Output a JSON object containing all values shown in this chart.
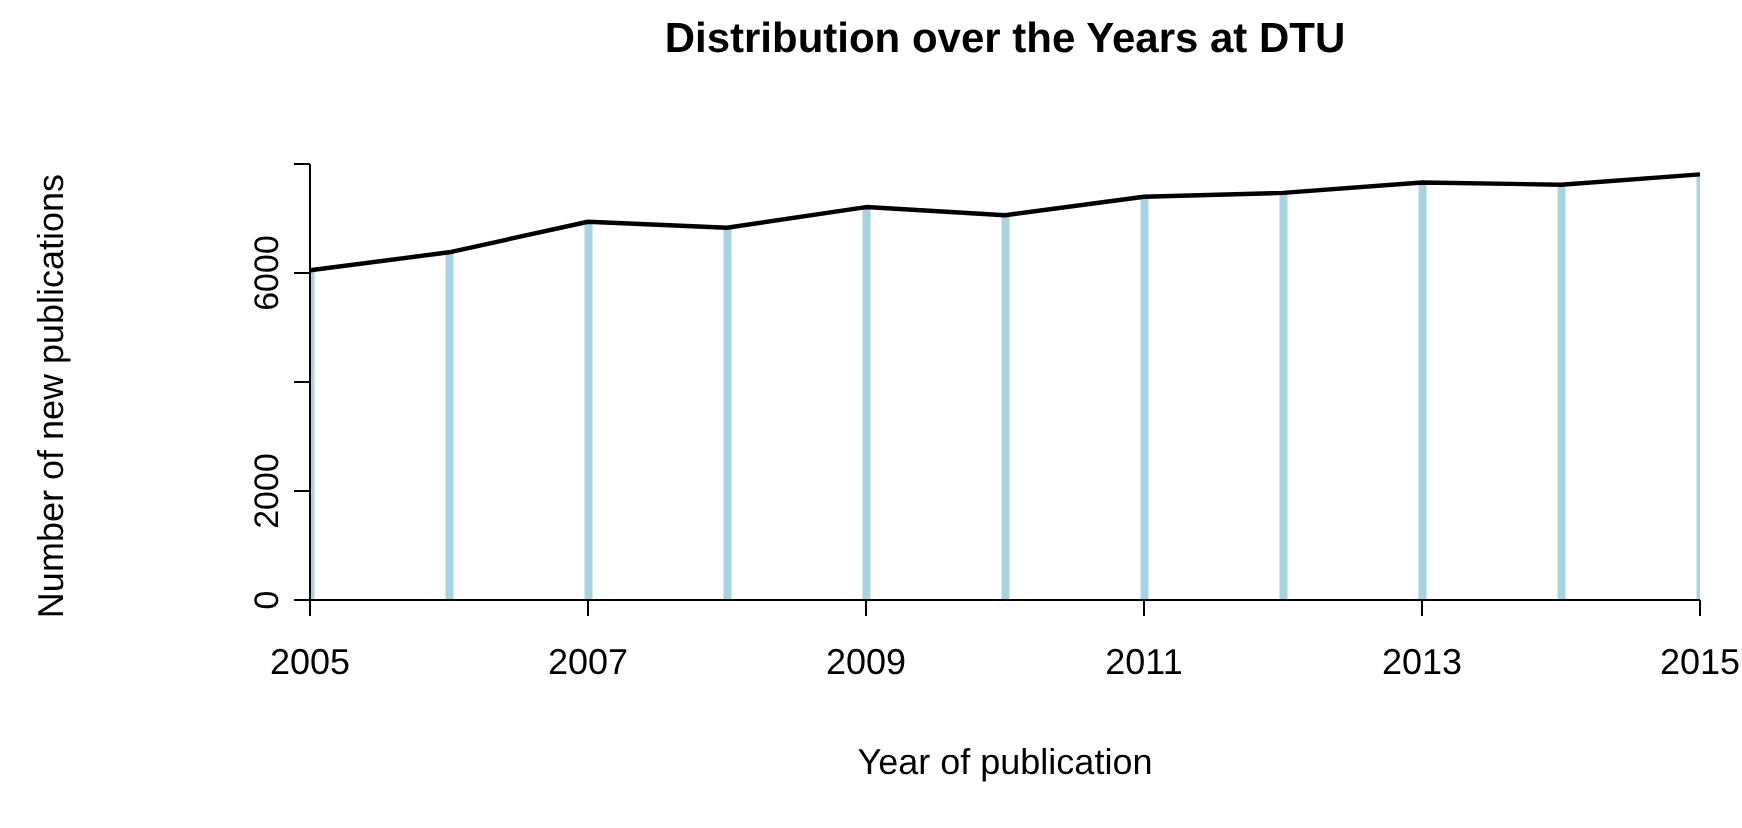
{
  "chart_data": {
    "type": "line",
    "title": "Distribution over the Years at DTU",
    "xlabel": "Year of publication",
    "ylabel": "Number of new publications",
    "x": [
      2005,
      2006,
      2007,
      2008,
      2009,
      2010,
      2011,
      2012,
      2013,
      2014,
      2015
    ],
    "series": [
      {
        "type": "bar",
        "color": "#a8d4e2",
        "values": [
          6050,
          6380,
          6940,
          6830,
          7210,
          7060,
          7400,
          7470,
          7660,
          7620,
          7810
        ]
      },
      {
        "color": "#000000",
        "marker": "none",
        "line_style": "solid",
        "values": [
          6050,
          6380,
          6940,
          6830,
          7210,
          7060,
          7400,
          7470,
          7660,
          7620,
          7810
        ]
      }
    ],
    "xlim": [
      2005,
      2015
    ],
    "xticks": [
      2005,
      2007,
      2009,
      2011,
      2013,
      2015
    ],
    "ylim": [
      0,
      8000
    ],
    "yticks": [
      0,
      2000,
      {
        "value": 4000,
        "label": null
      },
      6000,
      {
        "value": 8000,
        "label": null
      }
    ],
    "grid": false,
    "legend": false
  }
}
